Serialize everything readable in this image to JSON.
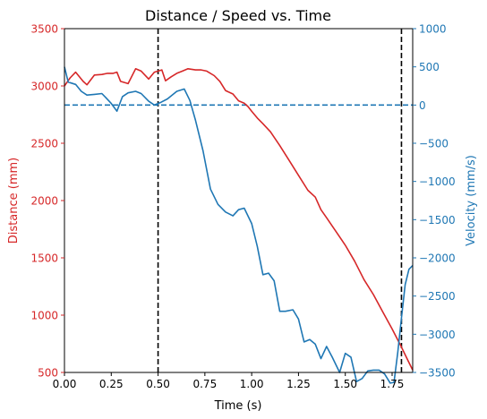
{
  "chart_data": {
    "type": "line",
    "title": "Distance / Speed vs. Time",
    "xlabel": "Time (s)",
    "ylabel_left": "Distance (mm)",
    "ylabel_right": "Velocity (mm/s)",
    "xlim": [
      0,
      1.86
    ],
    "ylim_left": [
      500,
      3500
    ],
    "ylim_right": [
      -3500,
      1000
    ],
    "x_ticks": [
      0,
      0.25,
      0.5,
      0.75,
      1.0,
      1.25,
      1.5,
      1.75
    ],
    "x_tick_labels": [
      "0.00",
      "0.25",
      "0.50",
      "0.75",
      "1.00",
      "1.25",
      "1.50",
      "1.75"
    ],
    "y_left_ticks": [
      500,
      1000,
      1500,
      2000,
      2500,
      3000,
      3500
    ],
    "y_right_ticks": [
      -3500,
      -3000,
      -2500,
      -2000,
      -1500,
      -1000,
      -500,
      0,
      500,
      1000
    ],
    "y_right_tick_labels": [
      "−3500",
      "−3000",
      "−2500",
      "−2000",
      "−1500",
      "−1000",
      "−500",
      "0",
      "500",
      "1000"
    ],
    "colors": {
      "distance": "#d62728",
      "velocity": "#1f77b4",
      "reference": "#000000"
    },
    "grid": false,
    "vlines": [
      0.5,
      1.8
    ],
    "hline_right": 0,
    "series": [
      {
        "axis": "left",
        "color": "#d62728",
        "x": [
          0.0,
          0.03,
          0.06,
          0.1,
          0.12,
          0.16,
          0.2,
          0.23,
          0.26,
          0.28,
          0.3,
          0.34,
          0.38,
          0.41,
          0.45,
          0.48,
          0.5,
          0.52,
          0.54,
          0.57,
          0.6,
          0.63,
          0.66,
          0.7,
          0.73,
          0.76,
          0.8,
          0.83,
          0.86,
          0.9,
          0.93,
          0.96,
          0.98,
          1.0,
          1.03,
          1.06,
          1.1,
          1.15,
          1.2,
          1.25,
          1.3,
          1.34,
          1.37,
          1.4,
          1.45,
          1.5,
          1.55,
          1.6,
          1.65,
          1.7,
          1.75,
          1.8,
          1.83,
          1.86
        ],
        "y": [
          3000,
          3070,
          3120,
          3040,
          3010,
          3095,
          3100,
          3110,
          3110,
          3120,
          3040,
          3020,
          3150,
          3130,
          3060,
          3120,
          3130,
          3140,
          3045,
          3080,
          3110,
          3130,
          3150,
          3140,
          3140,
          3130,
          3090,
          3040,
          2960,
          2930,
          2870,
          2850,
          2820,
          2780,
          2720,
          2670,
          2600,
          2480,
          2350,
          2220,
          2090,
          2030,
          1920,
          1850,
          1730,
          1610,
          1470,
          1310,
          1180,
          1030,
          880,
          720,
          620,
          520
        ]
      },
      {
        "axis": "right",
        "color": "#1f77b4",
        "x": [
          0.0,
          0.02,
          0.06,
          0.09,
          0.12,
          0.16,
          0.2,
          0.22,
          0.25,
          0.28,
          0.31,
          0.34,
          0.38,
          0.41,
          0.45,
          0.48,
          0.51,
          0.55,
          0.6,
          0.64,
          0.67,
          0.7,
          0.74,
          0.78,
          0.82,
          0.86,
          0.9,
          0.93,
          0.96,
          1.0,
          1.03,
          1.06,
          1.09,
          1.12,
          1.15,
          1.18,
          1.22,
          1.25,
          1.28,
          1.31,
          1.34,
          1.37,
          1.4,
          1.43,
          1.47,
          1.5,
          1.53,
          1.56,
          1.59,
          1.62,
          1.65,
          1.68,
          1.71,
          1.74,
          1.76,
          1.78,
          1.8,
          1.82,
          1.84,
          1.86
        ],
        "y": [
          500,
          300,
          270,
          180,
          130,
          140,
          150,
          100,
          20,
          -80,
          110,
          160,
          180,
          150,
          50,
          0,
          30,
          80,
          180,
          210,
          60,
          -200,
          -600,
          -1100,
          -1300,
          -1400,
          -1450,
          -1370,
          -1350,
          -1550,
          -1850,
          -2220,
          -2200,
          -2300,
          -2700,
          -2700,
          -2680,
          -2800,
          -3100,
          -3070,
          -3130,
          -3320,
          -3160,
          -3300,
          -3500,
          -3250,
          -3300,
          -3620,
          -3580,
          -3480,
          -3470,
          -3470,
          -3520,
          -3640,
          -3630,
          -3240,
          -2780,
          -2350,
          -2150,
          -2100
        ]
      }
    ]
  }
}
